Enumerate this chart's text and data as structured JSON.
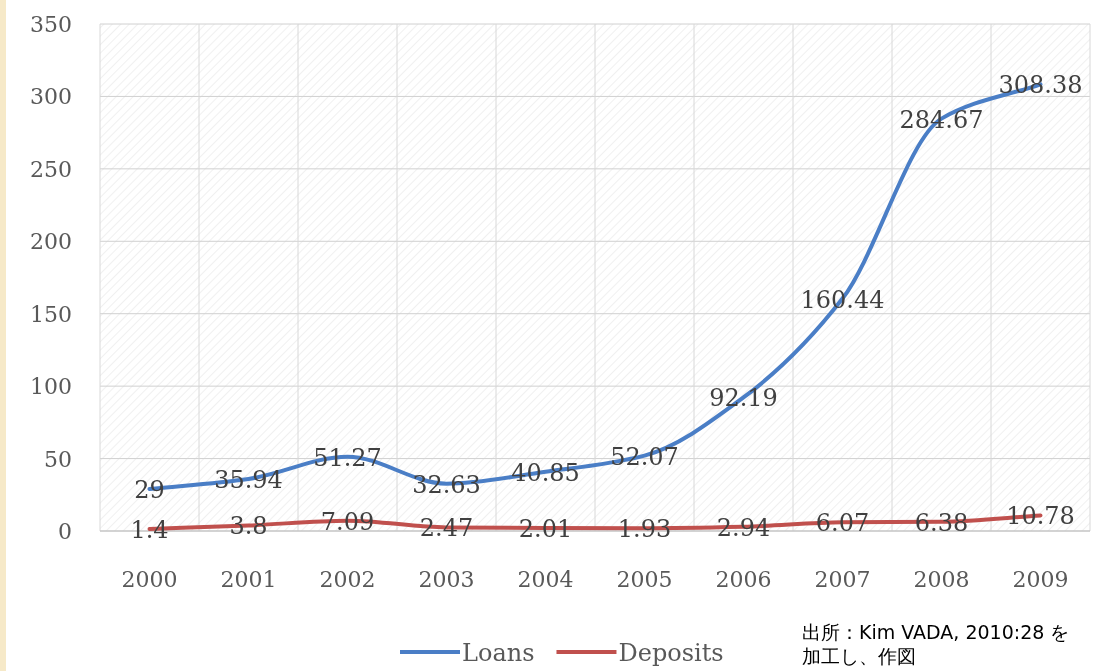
{
  "chart_data": {
    "type": "line",
    "categories": [
      "2000",
      "2001",
      "2002",
      "2003",
      "2004",
      "2005",
      "2006",
      "2007",
      "2008",
      "2009"
    ],
    "series": [
      {
        "name": "Loans",
        "color": "#4a7ec6",
        "values": [
          29,
          35.94,
          51.27,
          32.63,
          40.85,
          52.07,
          92.19,
          160.44,
          284.67,
          308.38
        ]
      },
      {
        "name": "Deposits",
        "color": "#c0504d",
        "values": [
          1.4,
          3.8,
          7.09,
          2.47,
          2.01,
          1.93,
          2.94,
          6.07,
          6.38,
          10.78
        ]
      }
    ],
    "ylim": [
      0,
      350
    ],
    "yticks": [
      0,
      50,
      100,
      150,
      200,
      250,
      300,
      350
    ],
    "grid": true,
    "legend": "bottom",
    "data_labels": true,
    "marker": "none",
    "line_style": "solid",
    "annotations": [
      "出所：Kim VADA, 2010:28 を加工し、作図"
    ]
  }
}
